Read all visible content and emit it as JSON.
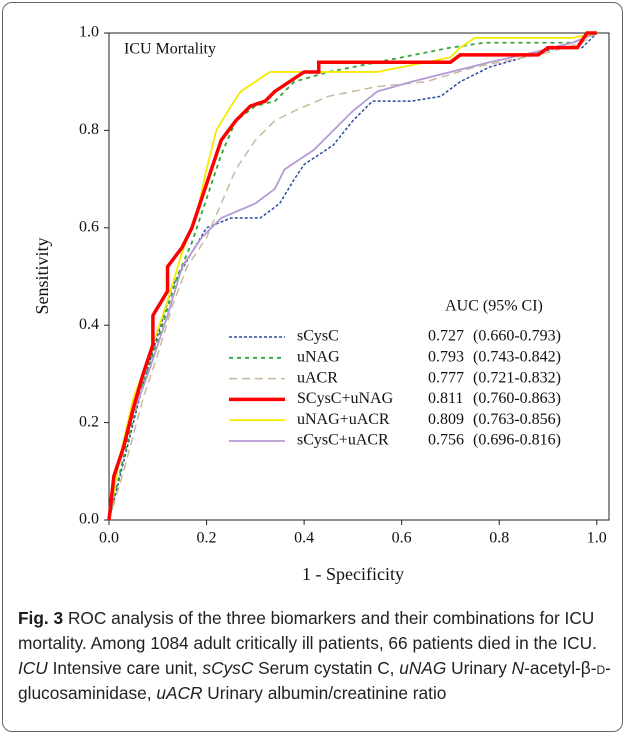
{
  "chart_data": {
    "type": "line",
    "annotation": "ICU Mortality",
    "xlabel": "1 - Specificity",
    "ylabel": "Sensitivity",
    "xlim": [
      0,
      1.025
    ],
    "ylim": [
      0,
      1.0
    ],
    "xticks": [
      {
        "value": 0,
        "label": "0.0"
      },
      0.2,
      0.4,
      0.6,
      0.8,
      {
        "value": 1,
        "label": "1.0"
      }
    ],
    "yticks": [
      {
        "value": 0,
        "label": "0.0"
      },
      0.2,
      0.4,
      0.6,
      0.8,
      {
        "value": 1,
        "label": "1.0"
      }
    ],
    "legend_header": "AUC (95% CI)",
    "series": [
      {
        "name": "sCysC",
        "auc": 0.727,
        "ci": "(0.660-0.793)",
        "color": "#2b4c9e",
        "width": 1.5,
        "dash": "3,2",
        "x": [
          0,
          0.03,
          0.07,
          0.1,
          0.13,
          0.17,
          0.2,
          0.25,
          0.31,
          0.35,
          0.38,
          0.4,
          0.46,
          0.5,
          0.54,
          0.62,
          0.68,
          0.72,
          0.78,
          0.85,
          0.92,
          0.97,
          1
        ],
        "values": [
          0,
          0.12,
          0.28,
          0.38,
          0.48,
          0.55,
          0.6,
          0.62,
          0.62,
          0.65,
          0.7,
          0.73,
          0.77,
          0.82,
          0.86,
          0.86,
          0.87,
          0.9,
          0.93,
          0.95,
          0.97,
          0.97,
          1
        ]
      },
      {
        "name": "uNAG",
        "auc": 0.793,
        "ci": "(0.743-0.842)",
        "color": "#2fa83a",
        "width": 1.8,
        "dash": "4,4",
        "x": [
          0,
          0.03,
          0.06,
          0.1,
          0.14,
          0.17,
          0.2,
          0.23,
          0.26,
          0.3,
          0.34,
          0.38,
          0.45,
          0.6,
          0.7,
          0.77,
          0.95,
          1
        ],
        "values": [
          0,
          0.13,
          0.25,
          0.37,
          0.5,
          0.57,
          0.66,
          0.75,
          0.82,
          0.85,
          0.86,
          0.9,
          0.92,
          0.95,
          0.97,
          0.98,
          0.98,
          1
        ]
      },
      {
        "name": "uACR",
        "auc": 0.777,
        "ci": "(0.721-0.832)",
        "color": "#c9b99b",
        "width": 1.5,
        "dash": "8,5",
        "x": [
          0,
          0.03,
          0.07,
          0.1,
          0.13,
          0.16,
          0.2,
          0.23,
          0.26,
          0.3,
          0.34,
          0.38,
          0.45,
          0.55,
          0.65,
          0.75,
          0.9,
          0.97,
          1
        ],
        "values": [
          0,
          0.1,
          0.25,
          0.34,
          0.44,
          0.52,
          0.58,
          0.65,
          0.72,
          0.78,
          0.82,
          0.84,
          0.87,
          0.89,
          0.9,
          0.93,
          0.96,
          0.98,
          1
        ]
      },
      {
        "name": "SCysC+uNAG",
        "auc": 0.811,
        "ci": "(0.760-0.863)",
        "color": "#ff0000",
        "width": 3.5,
        "dash": "none",
        "x": [
          0,
          0.01,
          0.03,
          0.05,
          0.07,
          0.09,
          0.09,
          0.12,
          0.12,
          0.15,
          0.17,
          0.19,
          0.21,
          0.23,
          0.26,
          0.29,
          0.32,
          0.34,
          0.37,
          0.4,
          0.43,
          0.43,
          0.7,
          0.72,
          0.88,
          0.9,
          0.96,
          0.98,
          1
        ],
        "values": [
          0,
          0.09,
          0.15,
          0.23,
          0.3,
          0.36,
          0.42,
          0.47,
          0.52,
          0.56,
          0.6,
          0.66,
          0.72,
          0.78,
          0.82,
          0.85,
          0.86,
          0.88,
          0.9,
          0.92,
          0.92,
          0.94,
          0.94,
          0.955,
          0.955,
          0.97,
          0.97,
          1,
          1
        ]
      },
      {
        "name": "uNAG+uACR",
        "auc": 0.809,
        "ci": "(0.763-0.856)",
        "color": "#f7ea00",
        "width": 1.8,
        "dash": "none",
        "x": [
          0,
          0.02,
          0.05,
          0.08,
          0.12,
          0.15,
          0.18,
          0.2,
          0.22,
          0.25,
          0.27,
          0.3,
          0.33,
          0.55,
          0.6,
          0.7,
          0.72,
          0.75,
          0.95,
          1
        ],
        "values": [
          0,
          0.12,
          0.25,
          0.33,
          0.45,
          0.55,
          0.63,
          0.72,
          0.8,
          0.85,
          0.88,
          0.9,
          0.92,
          0.92,
          0.93,
          0.95,
          0.97,
          0.99,
          0.99,
          1
        ]
      },
      {
        "name": "sCysC+uACR",
        "auc": 0.756,
        "ci": "(0.696-0.816)",
        "color": "#b59ad6",
        "width": 1.8,
        "dash": "none",
        "x": [
          0,
          0.02,
          0.05,
          0.08,
          0.12,
          0.15,
          0.19,
          0.23,
          0.3,
          0.34,
          0.36,
          0.42,
          0.46,
          0.5,
          0.55,
          0.62,
          0.7,
          0.78,
          0.87,
          0.95,
          1
        ],
        "values": [
          0,
          0.12,
          0.22,
          0.3,
          0.42,
          0.52,
          0.58,
          0.62,
          0.65,
          0.68,
          0.72,
          0.76,
          0.8,
          0.84,
          0.88,
          0.9,
          0.92,
          0.94,
          0.96,
          0.98,
          1
        ]
      }
    ]
  },
  "caption": {
    "label": "Fig. 3",
    "parts": [
      {
        "text": " ROC analysis of the three biomarkers and their combinations for ICU mortality. Among 1084 adult critically ill patients, 66 patients died in the ICU. "
      },
      {
        "text": "ICU",
        "style": "italic"
      },
      {
        "text": " Intensive care unit, "
      },
      {
        "text": "sCysC",
        "style": "italic"
      },
      {
        "text": " Serum cystatin C, "
      },
      {
        "text": "uNAG",
        "style": "italic"
      },
      {
        "text": " Urinary "
      },
      {
        "text": "N",
        "style": "italic"
      },
      {
        "text": "-acetyl-β-"
      },
      {
        "text": "D",
        "style": "smallcaps"
      },
      {
        "text": "-glucosaminidase, "
      },
      {
        "text": "uACR",
        "style": "italic"
      },
      {
        "text": " Urinary albumin/creatinine ratio"
      }
    ]
  }
}
